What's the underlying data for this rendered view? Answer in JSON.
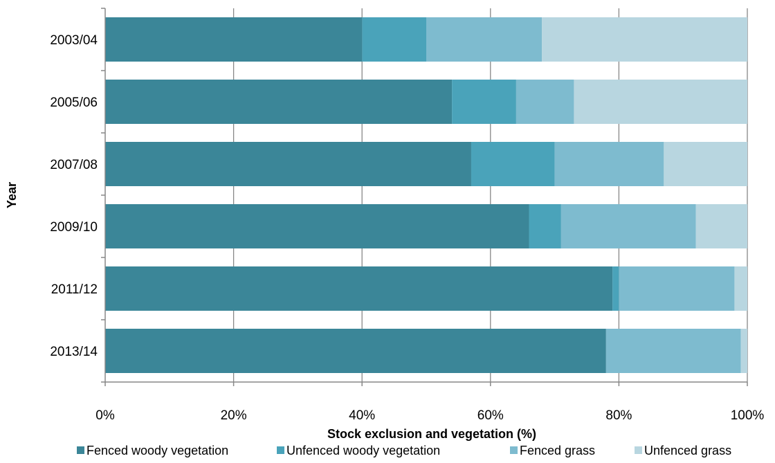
{
  "chart_data": {
    "type": "bar",
    "orientation": "horizontal",
    "stacking": "percent",
    "xlabel": "Stock exclusion and vegetation (%)",
    "ylabel": "Year",
    "xlim": [
      0,
      100
    ],
    "x_ticks": [
      "0%",
      "20%",
      "40%",
      "60%",
      "80%",
      "100%"
    ],
    "grid": "vertical",
    "legend_position": "bottom",
    "categories": [
      "2003/04",
      "2005/06",
      "2007/08",
      "2009/10",
      "2011/12",
      "2013/14"
    ],
    "series": [
      {
        "name": "Fenced woody vegetation",
        "color": "#3B8698",
        "values": [
          40,
          54,
          57,
          66,
          79,
          78
        ]
      },
      {
        "name": "Unfenced woody vegetation",
        "color": "#4AA3BA",
        "values": [
          10,
          10,
          13,
          5,
          1,
          0
        ]
      },
      {
        "name": "Fenced grass",
        "color": "#7EBBCF",
        "values": [
          18,
          9,
          17,
          21,
          18,
          21
        ]
      },
      {
        "name": "Unfenced grass",
        "color": "#B8D6E0",
        "values": [
          32,
          27,
          13,
          8,
          2,
          1
        ]
      }
    ]
  }
}
